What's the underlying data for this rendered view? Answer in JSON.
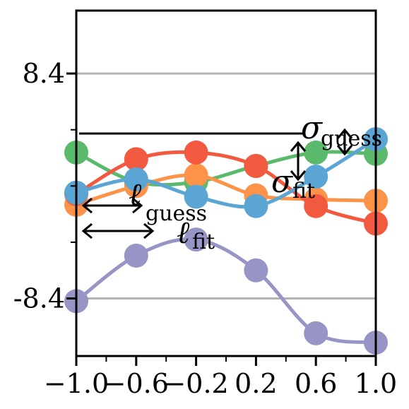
{
  "chart_data": {
    "type": "line",
    "xlim": [
      -1.0,
      1.0
    ],
    "ylim": [
      -12.7,
      13.1
    ],
    "x_ticks": [
      "−1.0",
      "−0.6",
      "−0.2",
      "0.2",
      "0.6",
      "1.0"
    ],
    "x_tick_values": [
      -1.0,
      -0.6,
      -0.2,
      0.2,
      0.6,
      1.0
    ],
    "x_minor_tick_values": [
      -0.8,
      -0.4,
      0.0,
      0.4,
      0.8
    ],
    "y_ticks": [
      "8.4",
      "-8.4"
    ],
    "y_tick_values": [
      8.4,
      -8.4
    ],
    "y_minor_tick_values": [
      4.2,
      0.0,
      -4.2
    ],
    "grid": "horizontal lines at y ticks",
    "legend": "none",
    "points_x": [
      -1.0,
      -0.6,
      -0.2,
      0.2,
      0.6,
      1.0
    ],
    "series": [
      {
        "color": "#5ab96a",
        "values": [
          2.5,
          0.3,
          0.3,
          1.5,
          2.5,
          2.4
        ]
      },
      {
        "color": "#fd9349",
        "values": [
          -1.4,
          0.0,
          0.8,
          -0.7,
          -1.0,
          -1.1
        ]
      },
      {
        "color": "#f2593f",
        "values": [
          -0.6,
          2.0,
          2.5,
          1.5,
          -1.5,
          -2.8
        ]
      },
      {
        "color": "#5ba5d5",
        "values": [
          -0.5,
          0.5,
          -0.8,
          -1.5,
          0.7,
          3.5
        ]
      },
      {
        "color": "#9794c6",
        "values": [
          -8.6,
          -5.2,
          -4.0,
          -6.3,
          -11.0,
          -11.7
        ]
      }
    ],
    "annotations": {
      "sigma_guess_main": "σ",
      "sigma_guess_sub": "guess",
      "sigma_fit_main": "σ",
      "sigma_fit_sub": "fit",
      "ell_guess_main": "ℓ",
      "ell_guess_sub": "guess",
      "ell_fit_main": "ℓ",
      "ell_fit_sub": "fit"
    }
  }
}
